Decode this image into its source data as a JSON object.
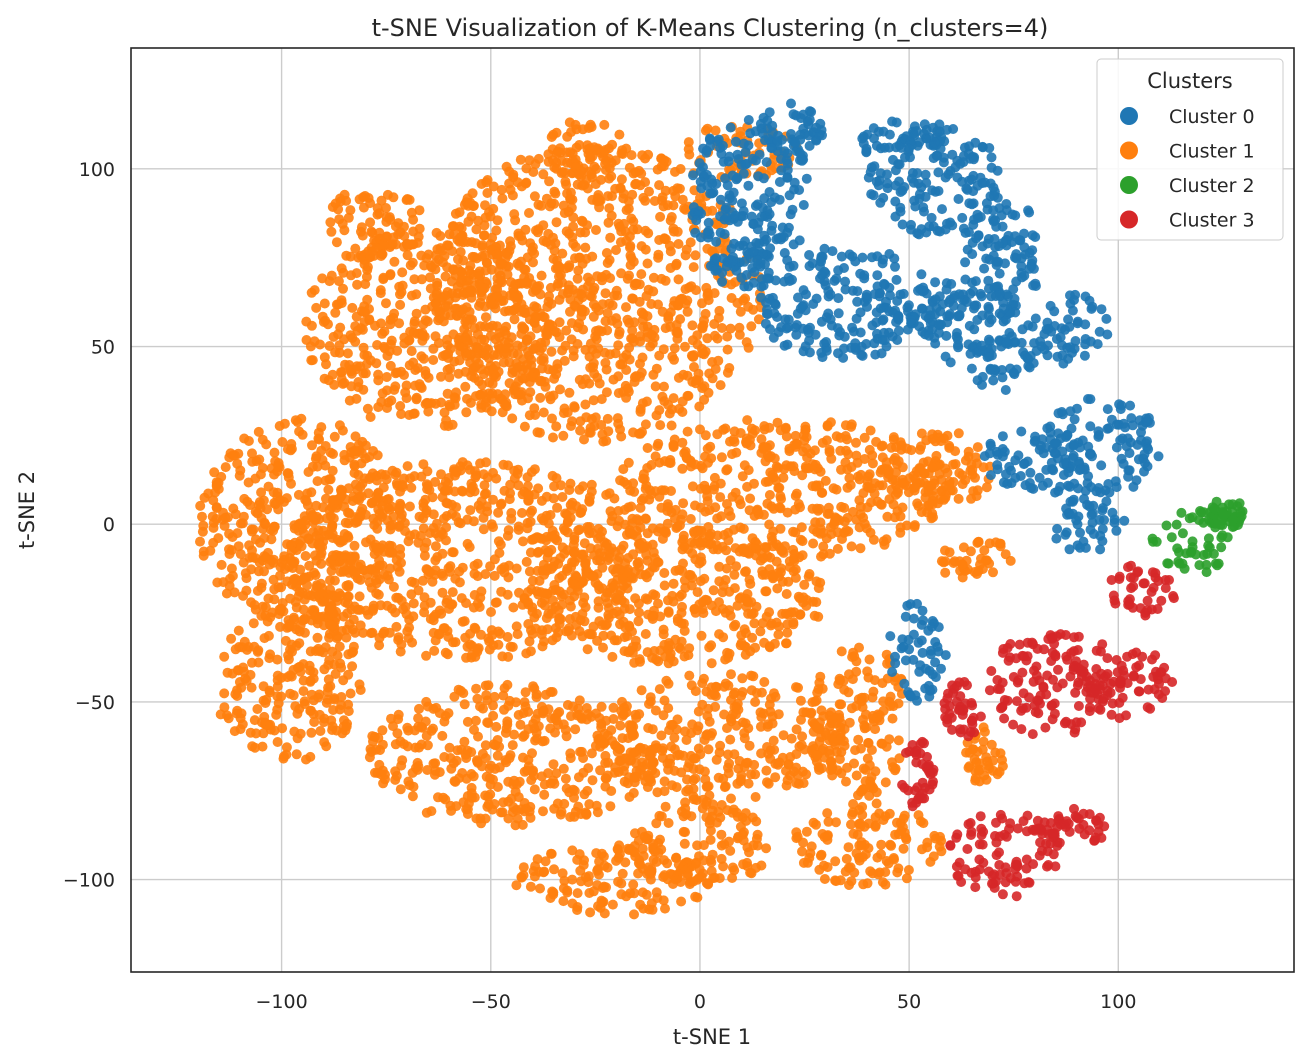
{
  "chart_data": {
    "type": "scatter",
    "title": "t-SNE Visualization of K-Means Clustering (n_clusters=4)",
    "xlabel": "t-SNE 1",
    "ylabel": "t-SNE 2",
    "xlim": [
      -136,
      142
    ],
    "ylim": [
      -126,
      134
    ],
    "xticks": [
      -100,
      -50,
      0,
      50,
      100
    ],
    "yticks": [
      -100,
      -50,
      0,
      50,
      100
    ],
    "xtick_labels": [
      "−100",
      "−50",
      "0",
      "50",
      "100"
    ],
    "ytick_labels": [
      "−100",
      "−50",
      "0",
      "50",
      "100"
    ],
    "grid": true,
    "legend": {
      "title": "Clusters",
      "placement": "top-right",
      "entries": [
        "Cluster 0",
        "Cluster 1",
        "Cluster 2",
        "Cluster 3"
      ]
    },
    "series": [
      {
        "name": "Cluster 0",
        "color": "#1f77b4",
        "regions": [
          {
            "cx": 12,
            "cy": 92,
            "rx": 15,
            "ry": 22
          },
          {
            "cx": 22,
            "cy": 112,
            "rx": 8,
            "ry": 8
          },
          {
            "cx": 35,
            "cy": 62,
            "rx": 22,
            "ry": 16
          },
          {
            "cx": 56,
            "cy": 97,
            "rx": 16,
            "ry": 16
          },
          {
            "cx": 48,
            "cy": 108,
            "rx": 10,
            "ry": 6
          },
          {
            "cx": 72,
            "cy": 75,
            "rx": 10,
            "ry": 18
          },
          {
            "cx": 62,
            "cy": 57,
            "rx": 16,
            "ry": 12
          },
          {
            "cx": 88,
            "cy": 55,
            "rx": 10,
            "ry": 10
          },
          {
            "cx": 72,
            "cy": 45,
            "rx": 8,
            "ry": 8
          },
          {
            "cx": 96,
            "cy": 22,
            "rx": 14,
            "ry": 14
          },
          {
            "cx": 80,
            "cy": 18,
            "rx": 12,
            "ry": 10
          },
          {
            "cx": 92,
            "cy": 0,
            "rx": 10,
            "ry": 8
          },
          {
            "cx": 52,
            "cy": -36,
            "rx": 7,
            "ry": 14
          },
          {
            "cx": 10,
            "cy": 72,
            "rx": 8,
            "ry": 6
          }
        ]
      },
      {
        "name": "Cluster 1",
        "color": "#ff7f0e",
        "regions": [
          {
            "cx": -25,
            "cy": 65,
            "rx": 40,
            "ry": 42
          },
          {
            "cx": -65,
            "cy": 55,
            "rx": 30,
            "ry": 28
          },
          {
            "cx": -95,
            "cy": 0,
            "rx": 25,
            "ry": 30
          },
          {
            "cx": -55,
            "cy": -10,
            "rx": 45,
            "ry": 28
          },
          {
            "cx": -5,
            "cy": -20,
            "rx": 35,
            "ry": 20
          },
          {
            "cx": 20,
            "cy": 10,
            "rx": 40,
            "ry": 20
          },
          {
            "cx": -98,
            "cy": -45,
            "rx": 18,
            "ry": 22
          },
          {
            "cx": -45,
            "cy": -65,
            "rx": 35,
            "ry": 20
          },
          {
            "cx": 5,
            "cy": -60,
            "rx": 30,
            "ry": 18
          },
          {
            "cx": -20,
            "cy": -100,
            "rx": 25,
            "ry": 10
          },
          {
            "cx": 0,
            "cy": -90,
            "rx": 18,
            "ry": 12
          },
          {
            "cx": 40,
            "cy": -90,
            "rx": 18,
            "ry": 12
          },
          {
            "cx": 38,
            "cy": -55,
            "rx": 12,
            "ry": 22
          },
          {
            "cx": 10,
            "cy": 105,
            "rx": 14,
            "ry": 8
          },
          {
            "cx": 66,
            "cy": -10,
            "rx": 10,
            "ry": 6
          },
          {
            "cx": 55,
            "cy": 15,
            "rx": 15,
            "ry": 12
          },
          {
            "cx": -78,
            "cy": 85,
            "rx": 12,
            "ry": 10
          },
          {
            "cx": 68,
            "cy": -65,
            "rx": 5,
            "ry": 8
          },
          {
            "cx": -28,
            "cy": 106,
            "rx": 10,
            "ry": 8
          }
        ]
      },
      {
        "name": "Cluster 2",
        "color": "#2ca02c",
        "regions": [
          {
            "cx": 118,
            "cy": -5,
            "rx": 10,
            "ry": 9
          },
          {
            "cx": 126,
            "cy": 3,
            "rx": 5,
            "ry": 4
          }
        ]
      },
      {
        "name": "Cluster 3",
        "color": "#d62728",
        "regions": [
          {
            "cx": 85,
            "cy": -45,
            "rx": 17,
            "ry": 15
          },
          {
            "cx": 103,
            "cy": -45,
            "rx": 10,
            "ry": 10
          },
          {
            "cx": 73,
            "cy": -93,
            "rx": 14,
            "ry": 12
          },
          {
            "cx": 88,
            "cy": -85,
            "rx": 10,
            "ry": 6
          },
          {
            "cx": 106,
            "cy": -18,
            "rx": 8,
            "ry": 8
          },
          {
            "cx": 63,
            "cy": -52,
            "rx": 5,
            "ry": 8
          },
          {
            "cx": 52,
            "cy": -70,
            "rx": 4,
            "ry": 10
          }
        ]
      }
    ]
  }
}
